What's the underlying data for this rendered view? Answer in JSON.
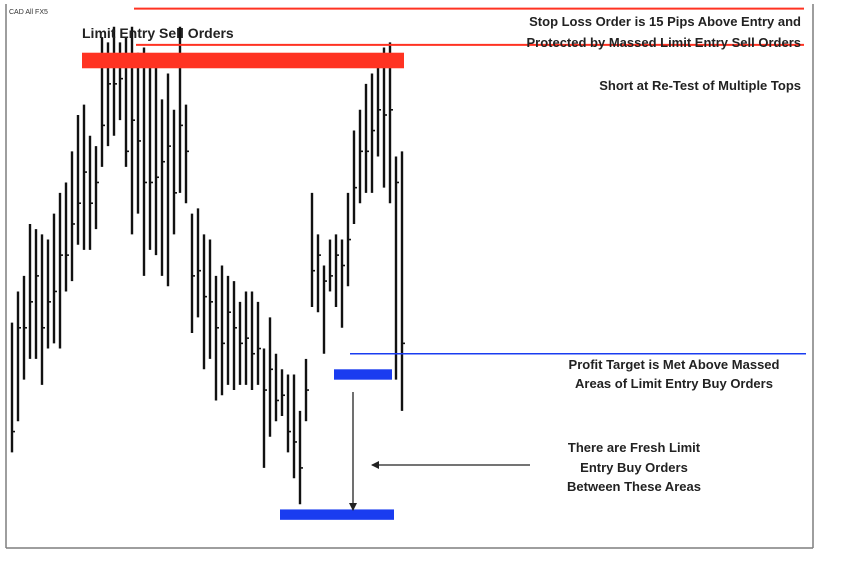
{
  "chart_data": {
    "type": "ohlc-bar",
    "symbol": "CAD All FX5",
    "title": "",
    "xlabel": "",
    "ylabel": "",
    "ylim": [
      0,
      100
    ],
    "bars": [
      {
        "h": 39,
        "l": 14,
        "c": 18
      },
      {
        "h": 45,
        "l": 20,
        "c": 38
      },
      {
        "h": 48,
        "l": 28,
        "c": 38
      },
      {
        "h": 58,
        "l": 32,
        "c": 43
      },
      {
        "h": 57,
        "l": 32,
        "c": 48
      },
      {
        "h": 56,
        "l": 27,
        "c": 38
      },
      {
        "h": 55,
        "l": 34,
        "c": 43
      },
      {
        "h": 60,
        "l": 35,
        "c": 45
      },
      {
        "h": 64,
        "l": 34,
        "c": 52
      },
      {
        "h": 66,
        "l": 45,
        "c": 52
      },
      {
        "h": 72,
        "l": 47,
        "c": 58
      },
      {
        "h": 79,
        "l": 54,
        "c": 62
      },
      {
        "h": 81,
        "l": 53,
        "c": 68
      },
      {
        "h": 75,
        "l": 53,
        "c": 62
      },
      {
        "h": 73,
        "l": 57,
        "c": 66
      },
      {
        "h": 94,
        "l": 69,
        "c": 77
      },
      {
        "h": 93,
        "l": 73,
        "c": 85
      },
      {
        "h": 96,
        "l": 75,
        "c": 85
      },
      {
        "h": 93,
        "l": 78,
        "c": 86
      },
      {
        "h": 94,
        "l": 69,
        "c": 72
      },
      {
        "h": 96,
        "l": 56,
        "c": 78
      },
      {
        "h": 91,
        "l": 60,
        "c": 74
      },
      {
        "h": 92,
        "l": 48,
        "c": 66
      },
      {
        "h": 90,
        "l": 53,
        "c": 66
      },
      {
        "h": 90,
        "l": 52,
        "c": 67
      },
      {
        "h": 82,
        "l": 48,
        "c": 70
      },
      {
        "h": 87,
        "l": 46,
        "c": 73
      },
      {
        "h": 80,
        "l": 56,
        "c": 64
      },
      {
        "h": 96,
        "l": 64,
        "c": 77
      },
      {
        "h": 81,
        "l": 62,
        "c": 72
      },
      {
        "h": 60,
        "l": 37,
        "c": 48
      },
      {
        "h": 61,
        "l": 40,
        "c": 49
      },
      {
        "h": 56,
        "l": 30,
        "c": 44
      },
      {
        "h": 55,
        "l": 32,
        "c": 43
      },
      {
        "h": 48,
        "l": 24,
        "c": 38
      },
      {
        "h": 50,
        "l": 25,
        "c": 35
      },
      {
        "h": 48,
        "l": 27,
        "c": 41
      },
      {
        "h": 47,
        "l": 26,
        "c": 38
      },
      {
        "h": 43,
        "l": 27,
        "c": 35
      },
      {
        "h": 45,
        "l": 27,
        "c": 36
      },
      {
        "h": 45,
        "l": 26,
        "c": 33
      },
      {
        "h": 43,
        "l": 27,
        "c": 34
      },
      {
        "h": 34,
        "l": 11,
        "c": 26
      },
      {
        "h": 40,
        "l": 17,
        "c": 30
      },
      {
        "h": 33,
        "l": 20,
        "c": 24
      },
      {
        "h": 30,
        "l": 21,
        "c": 25
      },
      {
        "h": 29,
        "l": 14,
        "c": 18
      },
      {
        "h": 29,
        "l": 9,
        "c": 16
      },
      {
        "h": 22,
        "l": 4,
        "c": 11
      },
      {
        "h": 32,
        "l": 20,
        "c": 26
      },
      {
        "h": 64,
        "l": 42,
        "c": 49
      },
      {
        "h": 56,
        "l": 41,
        "c": 52
      },
      {
        "h": 50,
        "l": 33,
        "c": 47
      },
      {
        "h": 55,
        "l": 45,
        "c": 48
      },
      {
        "h": 56,
        "l": 42,
        "c": 52
      },
      {
        "h": 55,
        "l": 38,
        "c": 50
      },
      {
        "h": 64,
        "l": 46,
        "c": 55
      },
      {
        "h": 76,
        "l": 58,
        "c": 65
      },
      {
        "h": 80,
        "l": 62,
        "c": 72
      },
      {
        "h": 85,
        "l": 64,
        "c": 72
      },
      {
        "h": 87,
        "l": 64,
        "c": 76
      },
      {
        "h": 89,
        "l": 71,
        "c": 80
      },
      {
        "h": 92,
        "l": 65,
        "c": 79
      },
      {
        "h": 93,
        "l": 62,
        "c": 80
      },
      {
        "h": 71,
        "l": 28,
        "c": 66
      },
      {
        "h": 72,
        "l": 22,
        "c": 35
      }
    ],
    "zones": {
      "sell_orders": {
        "from": 88,
        "to": 91
      },
      "buy_orders_upper": {
        "from": 28,
        "to": 30
      },
      "buy_orders_lower": {
        "from": 1,
        "to": 3
      }
    },
    "lines": {
      "stop_loss": 99.5,
      "short_entry": 92.5,
      "profit_target": 33
    },
    "annotations": {
      "sell_zone_label": "Limit Entry Sell Orders",
      "stop_loss_label": [
        "Stop Loss Order is 15 Pips Above Entry and",
        "Protected by Massed Limit Entry Sell Orders"
      ],
      "short_label": "Short at Re-Test of Multiple Tops",
      "profit_label": [
        "Profit Target is Met Above Massed",
        "Areas of Limit Entry Buy Orders"
      ],
      "fresh_orders_label": [
        "There are Fresh Limit",
        "Entry Buy Orders",
        "Between These Areas"
      ]
    },
    "colors": {
      "bar": "#111111",
      "red": "#ff3322",
      "blue": "#1a3cf0",
      "border": "#7f7f7f",
      "text": "#222222"
    }
  }
}
